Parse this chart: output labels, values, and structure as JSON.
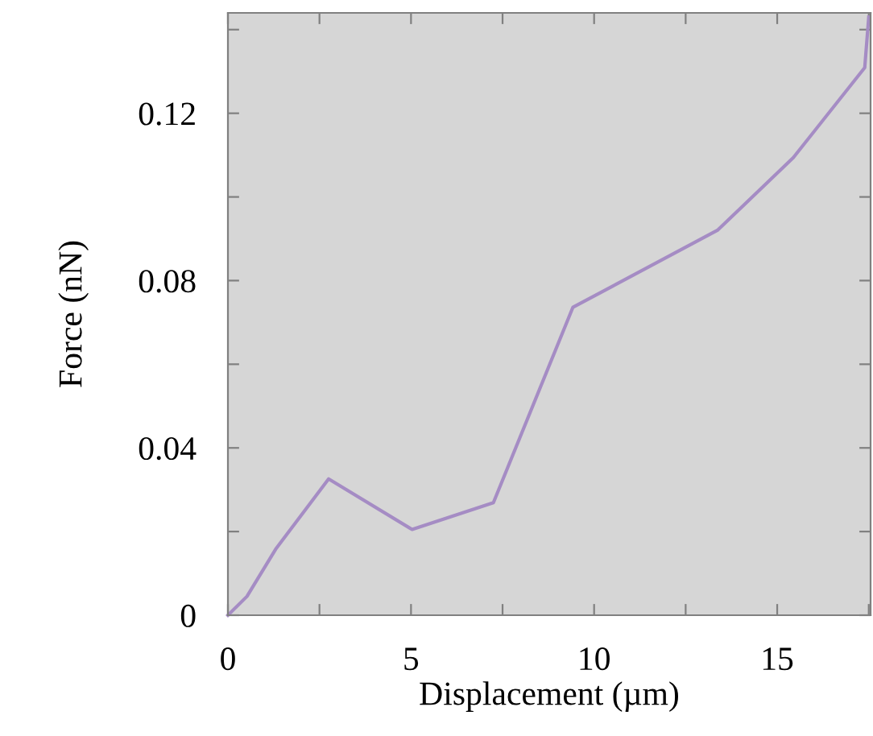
{
  "chart_data": {
    "type": "line",
    "xlabel": "Displacement (µm)",
    "ylabel": "Force (nN)",
    "x": [
      0,
      0.52,
      1.32,
      2.75,
      5.03,
      7.25,
      9.42,
      13.38,
      15.44,
      17.39,
      17.5
    ],
    "series": [
      {
        "color": "#a58cc4",
        "values": [
          0,
          0.0045,
          0.016,
          0.0326,
          0.0205,
          0.0269,
          0.0736,
          0.0921,
          0.1094,
          0.1309,
          0.143
        ]
      }
    ],
    "xlim": [
      0,
      17.55
    ],
    "ylim": [
      0,
      0.144
    ],
    "xticks": [
      0,
      {
        "value": 2.5,
        "label": null
      },
      5,
      {
        "value": 7.5,
        "label": null
      },
      10,
      {
        "value": 12.5,
        "label": null
      },
      15,
      {
        "value": 17.5,
        "label": null
      }
    ],
    "yticks": [
      0,
      {
        "value": 0.02,
        "label": null
      },
      0.04,
      {
        "value": 0.06,
        "label": null
      },
      0.08,
      {
        "value": 0.1,
        "label": null
      },
      0.12,
      {
        "value": 0.14,
        "label": null
      }
    ],
    "grid": false,
    "legend": false,
    "marker": "none",
    "line_style": "solid"
  }
}
